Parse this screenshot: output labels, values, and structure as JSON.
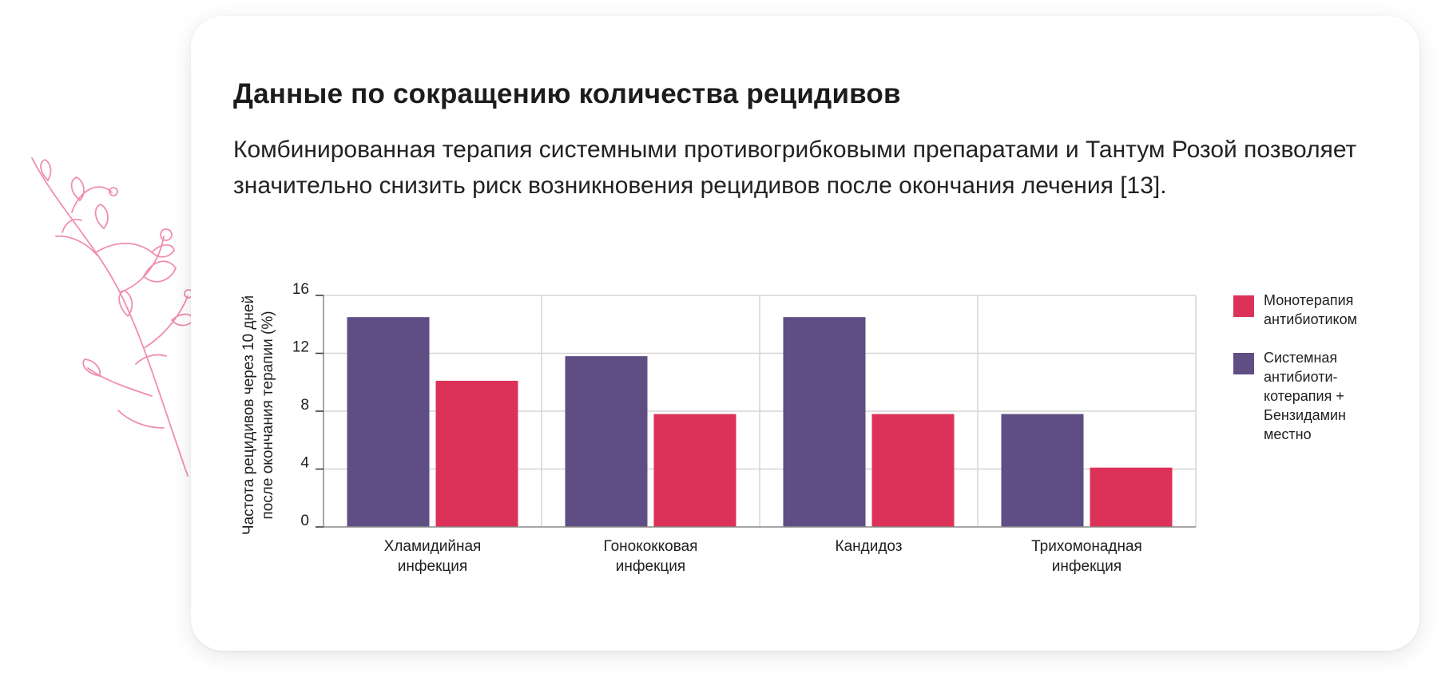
{
  "section": {
    "title": "Данные по сокращению количества рецидивов",
    "description": "Комбинированная терапия системными противогрибковыми препаратами и Тантум Розой позволяет значительно снизить риск возникновения рецидивов после окончания лечения [13]."
  },
  "colors": {
    "series_mono": "#dc3259",
    "series_combo": "#5e4e84",
    "grid": "#d6d6d6",
    "axis": "#888888",
    "floral": "#f08db3"
  },
  "chart_data": {
    "type": "bar",
    "ylabel_lines": [
      "Частота рецидивов через 10 дней",
      "после окончания терапии (%)"
    ],
    "xlabel": "",
    "ylim": [
      0,
      16
    ],
    "yticks": [
      0,
      4,
      8,
      12,
      16
    ],
    "grid": true,
    "legend_position": "right",
    "categories": [
      [
        "Хламидийная",
        "инфекция"
      ],
      [
        "Гонококковая",
        "инфекция"
      ],
      [
        "Кандидоз"
      ],
      [
        "Трихомонадная",
        "инфекция"
      ]
    ],
    "series": [
      {
        "name": "Системная антибиотикотерапия + Бензидамин местно",
        "legend_lines": [
          "Системная",
          "антибиоти-",
          "котерапия +",
          "Бензидамин",
          "местно"
        ],
        "color": "#5e4e84",
        "values": [
          14.5,
          11.8,
          14.5,
          7.8
        ]
      },
      {
        "name": "Монотерапия антибиотиком",
        "legend_lines": [
          "Монотерапия",
          "антибиотиком"
        ],
        "color": "#dc3259",
        "values": [
          10.1,
          7.8,
          7.8,
          4.1
        ]
      }
    ],
    "legend_order": [
      1,
      0
    ]
  }
}
